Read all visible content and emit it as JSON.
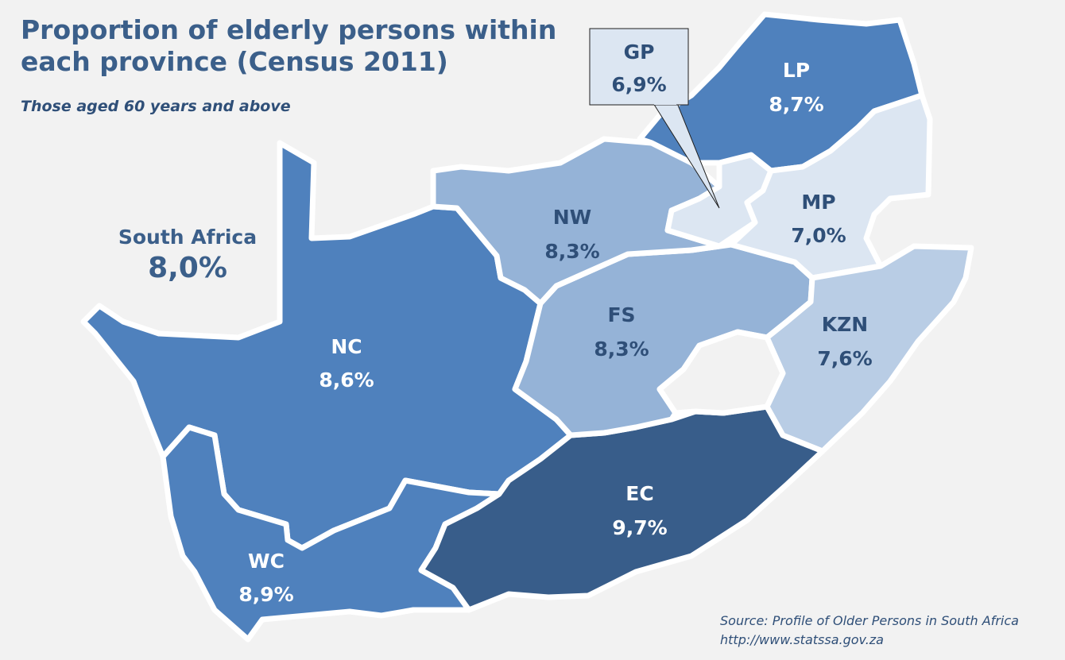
{
  "title": "Proportion of elderly persons within each province (Census 2011)",
  "subtitle": "Those aged 60 years and above",
  "national": {
    "name": "South Africa",
    "value": "8,0%"
  },
  "provinces": {
    "lp": {
      "name": "LP",
      "value": "8,7%",
      "fill": "#4f81bd",
      "text": "#ffffff"
    },
    "gp": {
      "name": "GP",
      "value": "6,9%",
      "fill": "#dce6f2",
      "text": "#2f4f78"
    },
    "mp": {
      "name": "MP",
      "value": "7,0%",
      "fill": "#dce6f2",
      "text": "#2f4f78"
    },
    "nw": {
      "name": "NW",
      "value": "8,3%",
      "fill": "#95b3d7",
      "text": "#2f4f78"
    },
    "fs": {
      "name": "FS",
      "value": "8,3%",
      "fill": "#95b3d7",
      "text": "#2f4f78"
    },
    "kzn": {
      "name": "KZN",
      "value": "7,6%",
      "fill": "#b9cde5",
      "text": "#2f4f78"
    },
    "nc": {
      "name": "NC",
      "value": "8,6%",
      "fill": "#4f81bd",
      "text": "#ffffff"
    },
    "ec": {
      "name": "EC",
      "value": "9,7%",
      "fill": "#385d8a",
      "text": "#ffffff"
    },
    "wc": {
      "name": "WC",
      "value": "8,9%",
      "fill": "#4f81bd",
      "text": "#ffffff"
    }
  },
  "lesotho_fill": "#f2f2f2",
  "source": {
    "line1": "Source: Profile of Older Persons in South Africa",
    "line2": "http://www.statssa.gov.za"
  }
}
